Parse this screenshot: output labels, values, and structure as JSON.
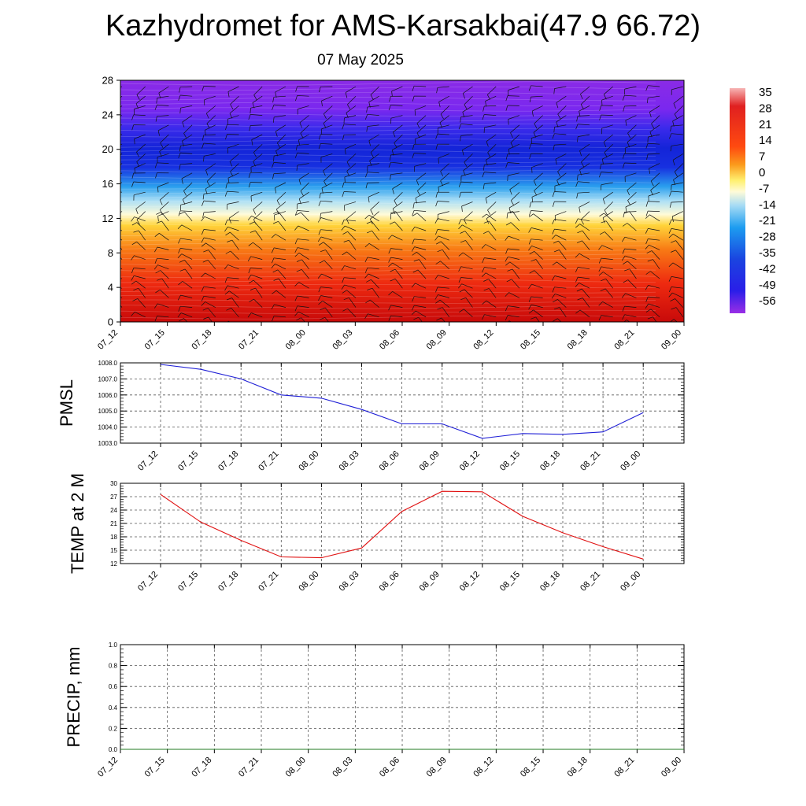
{
  "header": {
    "title": "Kazhydromet for AMS-Karsakbai(47.9 66.72)",
    "date": "07 May 2025"
  },
  "colors": {
    "pmsl_line": "#1f1fd6",
    "temp_line": "#e01010",
    "precip_line": "#1f7a1f",
    "grid": "#555555"
  },
  "time_labels": [
    "07_12",
    "07_15",
    "07_18",
    "07_21",
    "08_00",
    "08_03",
    "08_06",
    "08_09",
    "08_12",
    "08_15",
    "08_18",
    "08_21",
    "09_00"
  ],
  "chart_data": [
    {
      "type": "heatmap",
      "title": "",
      "ylim": [
        0,
        28
      ],
      "yticks": [
        0,
        4,
        8,
        12,
        16,
        20,
        24,
        28
      ],
      "x": [
        "07_12",
        "07_15",
        "07_18",
        "07_21",
        "08_00",
        "08_03",
        "08_06",
        "08_09",
        "08_12",
        "08_15",
        "08_18",
        "08_21",
        "09_00"
      ],
      "colorbar": {
        "labels": [
          "35",
          "28",
          "21",
          "14",
          "7",
          "0",
          "-7",
          "-14",
          "-21",
          "-28",
          "-35",
          "-42",
          "-49",
          "-56"
        ]
      },
      "overlay": "wind barbs"
    },
    {
      "type": "line",
      "ylabel": "PMSL",
      "ylim": [
        1003.0,
        1008.0
      ],
      "yticks": [
        "1003.0",
        "1004.0",
        "1005.0",
        "1006.0",
        "1007.0",
        "1008.0"
      ],
      "x": [
        "07_12",
        "07_15",
        "07_18",
        "07_21",
        "08_00",
        "08_03",
        "08_06",
        "08_09",
        "08_12",
        "08_15",
        "08_18",
        "08_21",
        "09_00"
      ],
      "values": [
        1007.9,
        1007.6,
        1007.0,
        1006.0,
        1005.8,
        1005.1,
        1004.2,
        1004.2,
        1003.3,
        1003.6,
        1003.55,
        1003.7,
        1004.9
      ],
      "grid": true
    },
    {
      "type": "line",
      "ylabel": "TEMP at 2 M",
      "ylim": [
        12,
        30
      ],
      "yticks": [
        "12",
        "15",
        "18",
        "21",
        "24",
        "27",
        "30"
      ],
      "x": [
        "07_12",
        "07_15",
        "07_18",
        "07_21",
        "08_00",
        "08_03",
        "08_06",
        "08_09",
        "08_12",
        "08_15",
        "08_18",
        "08_21",
        "09_00"
      ],
      "values": [
        27.5,
        21.3,
        17.2,
        13.5,
        13.3,
        15.5,
        23.7,
        28.2,
        28.1,
        22.6,
        18.9,
        15.8,
        13.0
      ],
      "grid": true
    },
    {
      "type": "line",
      "ylabel": "PRECIP, mm",
      "ylim": [
        0.0,
        1.0
      ],
      "yticks": [
        "0.0",
        "0.2",
        "0.4",
        "0.6",
        "0.8",
        "1.0"
      ],
      "x": [
        "07_12",
        "07_15",
        "07_18",
        "07_21",
        "08_00",
        "08_03",
        "08_06",
        "08_09",
        "08_12",
        "08_15",
        "08_18",
        "08_21",
        "09_00"
      ],
      "values": [
        0,
        0,
        0,
        0,
        0,
        0,
        0,
        0,
        0,
        0,
        0,
        0,
        0
      ],
      "grid": true
    }
  ]
}
